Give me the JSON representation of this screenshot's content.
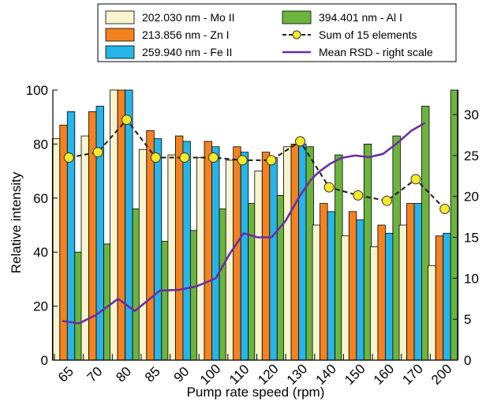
{
  "chart_data": {
    "type": "bar",
    "title": "",
    "xlabel": "Pump rate speed (rpm)",
    "ylabel": "Relative intensity",
    "ylim": [
      0,
      100
    ],
    "y2lim": [
      0,
      33
    ],
    "y_ticks": [
      0,
      20,
      40,
      60,
      80,
      100
    ],
    "y2_ticks": [
      0,
      5,
      10,
      15,
      20,
      25,
      30
    ],
    "grid": false,
    "legend_position": "top-center",
    "categories": [
      "65",
      "70",
      "80",
      "85",
      "90",
      "100",
      "110",
      "120",
      "130",
      "140",
      "150",
      "160",
      "170",
      "200"
    ],
    "series": [
      {
        "name": "202.030 nm - Mo II",
        "type": "bar",
        "color": "#f7f4cf",
        "values": [
          82,
          83,
          100,
          78,
          76,
          75,
          74,
          70,
          79,
          50,
          46,
          42,
          50,
          35
        ]
      },
      {
        "name": "213.856 nm - Zn I",
        "type": "bar",
        "color": "#f5821f",
        "values": [
          87,
          92,
          100,
          85,
          83,
          81,
          79,
          77,
          80,
          58,
          55,
          50,
          58,
          46
        ]
      },
      {
        "name": "259.940 nm - Fe II",
        "type": "bar",
        "color": "#27b4e8",
        "values": [
          92,
          94,
          100,
          82,
          81,
          79,
          77,
          75,
          80,
          55,
          52,
          47,
          58,
          47
        ]
      },
      {
        "name": "394.401 nm - Al I",
        "type": "bar",
        "color": "#6db43e",
        "values": [
          40,
          43,
          56,
          44,
          48,
          56,
          58,
          61,
          79,
          76,
          80,
          83,
          94,
          100
        ]
      },
      {
        "name": "Sum of 15 elements",
        "type": "line",
        "style": "dashed",
        "marker": "circle",
        "color": "#1a1a1a",
        "marker_color": "#f4ea2a",
        "axis": "left",
        "values": [
          75,
          77,
          89,
          75,
          75,
          75,
          74,
          74,
          81,
          64,
          61,
          59,
          67,
          56
        ]
      },
      {
        "name": "Mean RSD - right scale",
        "type": "line",
        "color": "#6a2f9f",
        "axis": "right",
        "x": [
          0,
          0.6,
          1.2,
          2.0,
          2.6,
          3.5,
          4.2,
          4.8,
          5.5,
          6.0,
          6.5,
          7.0,
          7.5,
          8.0,
          8.5,
          8.9,
          9.2,
          9.6,
          10.0,
          10.5,
          11.0,
          11.5,
          12.0,
          12.5,
          13.0
        ],
        "values": [
          4.8,
          4.5,
          5.5,
          7.5,
          6.0,
          8.5,
          8.6,
          9.0,
          10.0,
          13.0,
          15.5,
          15.0,
          15.0,
          17.0,
          20.0,
          22.0,
          23.0,
          24.0,
          24.7,
          25.0,
          24.8,
          25.2,
          26.5,
          28.0,
          29.0
        ]
      }
    ]
  }
}
